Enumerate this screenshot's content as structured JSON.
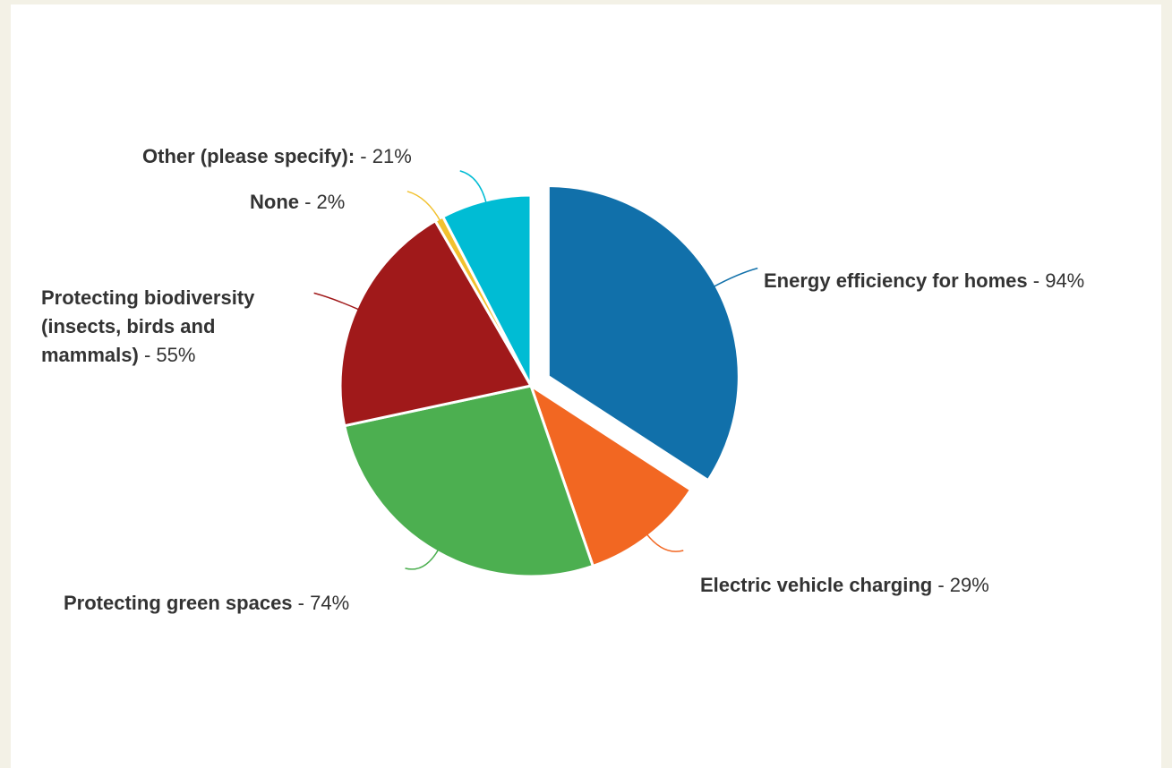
{
  "chart_data": {
    "type": "pie",
    "title": "",
    "slices": [
      {
        "name": "Energy efficiency for homes",
        "value_label": " - 94%",
        "value": 94,
        "color": "#1170aa"
      },
      {
        "name": "Electric vehicle charging",
        "value_label": " - 29%",
        "value": 29,
        "color": "#f26722"
      },
      {
        "name": "Protecting green spaces",
        "value_label": " - 74%",
        "value": 74,
        "color": "#4caf50"
      },
      {
        "name_lines": [
          "Protecting biodiversity",
          "(insects, birds and",
          "mammals)"
        ],
        "value_label": " - 55%",
        "value": 55,
        "color": "#a0191a"
      },
      {
        "name": "None",
        "value_label": " - 2%",
        "value": 2,
        "color": "#f2c12e"
      },
      {
        "name": "Other (please specify):",
        "value_label": " - 21%",
        "value": 21,
        "color": "#00bcd4"
      }
    ],
    "exploded_slice": "Energy efficiency for homes",
    "legend": "none"
  }
}
